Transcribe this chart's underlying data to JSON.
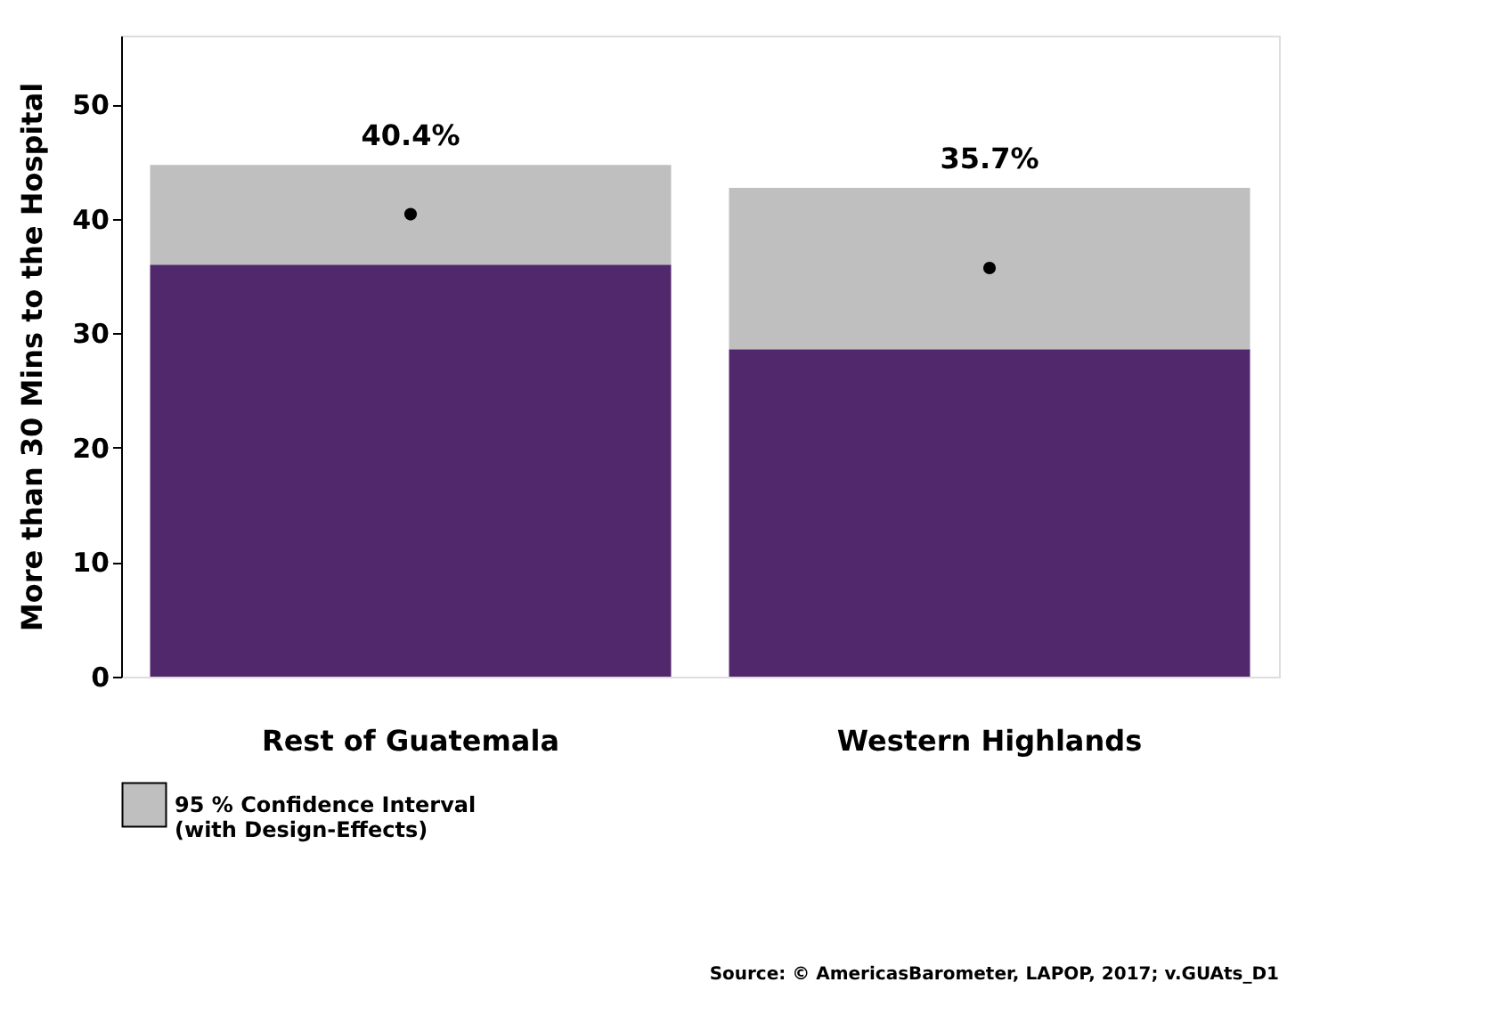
{
  "chart_data": {
    "type": "bar",
    "stacked": true,
    "ylabel": "More than 30 Mins to the Hospital",
    "categories": [
      "Rest of Guatemala",
      "Western Highlands"
    ],
    "series": [
      {
        "color": "#52286c",
        "values": [
          36.0,
          28.6
        ]
      },
      {
        "name": "95 % Confidence Interval\n(with Design-Effects)",
        "color": "#bfbfbf",
        "values": [
          8.7,
          14.1
        ]
      },
      {
        "type": "scatter",
        "color": "#000000",
        "x": [
          "Rest of Guatemala",
          "Western Highlands"
        ],
        "values": [
          40.4,
          35.7
        ],
        "value_labels": [
          "40.4%",
          "35.7%"
        ]
      }
    ],
    "ylim": [
      0,
      56
    ],
    "yticks": [
      0,
      10,
      20,
      30,
      40,
      50
    ],
    "grid": false,
    "legend": "bottom left",
    "marker": "circle",
    "annotations": [
      "Source: © AmericasBarometer, LAPOP, 2017; v.GUAts_D1"
    ]
  }
}
